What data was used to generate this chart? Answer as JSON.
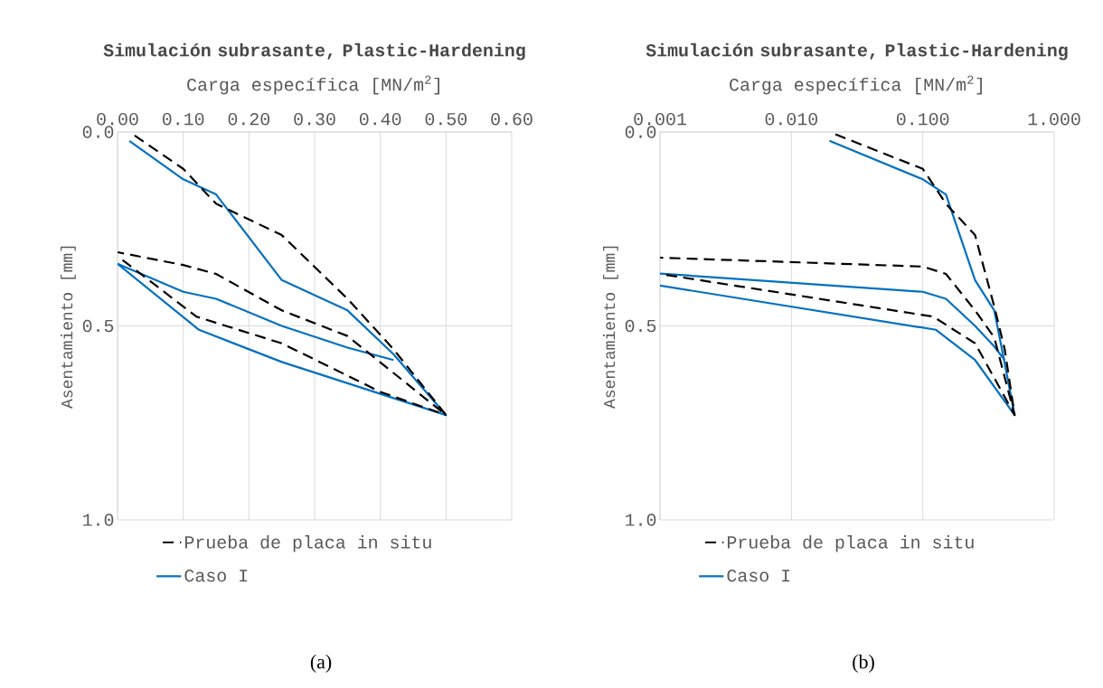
{
  "chart_data": [
    {
      "type": "line",
      "title": "Simulación subrasante, Plastic-Hardening",
      "xlabel": "Carga específica [MN/m$^{2}$]",
      "ylabel": "Asentamiento [mm]",
      "xlim": [
        0,
        0.6
      ],
      "xticks": [
        {
          "value": 0,
          "label": "0.00"
        },
        {
          "value": 0.1,
          "label": "0.10"
        },
        {
          "value": 0.2,
          "label": "0.20"
        },
        {
          "value": 0.3,
          "label": "0.30"
        },
        {
          "value": 0.4,
          "label": "0.40"
        },
        {
          "value": 0.5,
          "label": "0.50"
        },
        {
          "value": 0.6,
          "label": "0.60"
        }
      ],
      "ylim": [
        1,
        0
      ],
      "yticks": [
        {
          "value": 0,
          "label": "0.0"
        },
        {
          "value": 0.5,
          "label": "0.5"
        },
        {
          "value": 1,
          "label": "1.0"
        }
      ],
      "grid": true,
      "legend": "bottom",
      "annotations": [
        "(a)"
      ],
      "series": [
        {
          "name": "Prueba de placa in situ",
          "color": "#000000",
          "line_style": "dashed",
          "x": [
            0.018,
            0.1,
            0.15,
            0.25,
            0.35,
            0.42,
            0.5,
            0.35,
            0.25,
            0.15,
            0.1,
            0
          ],
          "values": [
            0,
            0.095,
            0.185,
            0.266,
            0.43,
            0.56,
            0.73,
            0.526,
            0.46,
            0.366,
            0.343,
            0.31
          ]
        },
        {
          "color": "#000000",
          "line_style": "dashed",
          "x": [
            0,
            0.12,
            0.25,
            0.4,
            0.5
          ],
          "values": [
            0.32,
            0.476,
            0.545,
            0.67,
            0.73
          ]
        },
        {
          "name": "Caso I",
          "color": "#0070c0",
          "line_style": "solid",
          "x": [
            0.018,
            0.1,
            0.15,
            0.25,
            0.35,
            0.42,
            0.5,
            0.25,
            0.124,
            0
          ],
          "values": [
            0.023,
            0.122,
            0.161,
            0.382,
            0.46,
            0.573,
            0.73,
            0.593,
            0.51,
            0.34
          ]
        },
        {
          "color": "#0070c0",
          "line_style": "solid",
          "x": [
            0,
            0.1,
            0.15,
            0.25,
            0.35,
            0.42
          ],
          "values": [
            0.34,
            0.412,
            0.43,
            0.5,
            0.556,
            0.588
          ]
        }
      ]
    },
    {
      "type": "line",
      "title": "Simulación subrasante, Plastic-Hardening",
      "xlabel": "Carga específica [MN/m$^{2}$]",
      "ylabel": "Asentamiento [mm]",
      "log": "x",
      "xlim": [
        0.001,
        1
      ],
      "xticks": [
        {
          "value": 0.001,
          "label": "0.001"
        },
        {
          "value": 0.01,
          "label": "0.010"
        },
        {
          "value": 0.1,
          "label": "0.100"
        },
        {
          "value": 1,
          "label": "1.000"
        }
      ],
      "ylim": [
        1,
        0
      ],
      "yticks": [
        {
          "value": 0,
          "label": "0.0"
        },
        {
          "value": 0.5,
          "label": "0.5"
        },
        {
          "value": 1,
          "label": "1.0"
        }
      ],
      "grid": true,
      "legend": "bottom",
      "annotations": [
        "(b)"
      ],
      "series": [
        {
          "name": "Prueba de placa in situ",
          "color": "#000000",
          "line_style": "dashed",
          "x": [
            0.0195,
            0.1,
            0.15,
            0.25,
            0.35,
            0.42,
            0.5,
            0.35,
            0.25,
            0.15,
            0.1,
            0.001
          ],
          "values": [
            0,
            0.095,
            0.185,
            0.266,
            0.45,
            0.56,
            0.73,
            0.53,
            0.46,
            0.366,
            0.347,
            0.324
          ]
        },
        {
          "color": "#000000",
          "line_style": "dashed",
          "x": [
            0.001,
            0.12,
            0.25,
            0.4,
            0.5
          ],
          "values": [
            0.366,
            0.476,
            0.545,
            0.67,
            0.73
          ]
        },
        {
          "name": "Caso I",
          "color": "#0070c0",
          "line_style": "solid",
          "x": [
            0.0195,
            0.1,
            0.15,
            0.25,
            0.35,
            0.42,
            0.5,
            0.25,
            0.126,
            0.001
          ],
          "values": [
            0.023,
            0.122,
            0.161,
            0.382,
            0.46,
            0.596,
            0.73,
            0.588,
            0.51,
            0.396
          ]
        },
        {
          "color": "#0070c0",
          "line_style": "solid",
          "x": [
            0.001,
            0.1,
            0.15,
            0.25,
            0.35,
            0.42
          ],
          "values": [
            0.365,
            0.412,
            0.43,
            0.5,
            0.553,
            0.588
          ]
        }
      ]
    }
  ]
}
